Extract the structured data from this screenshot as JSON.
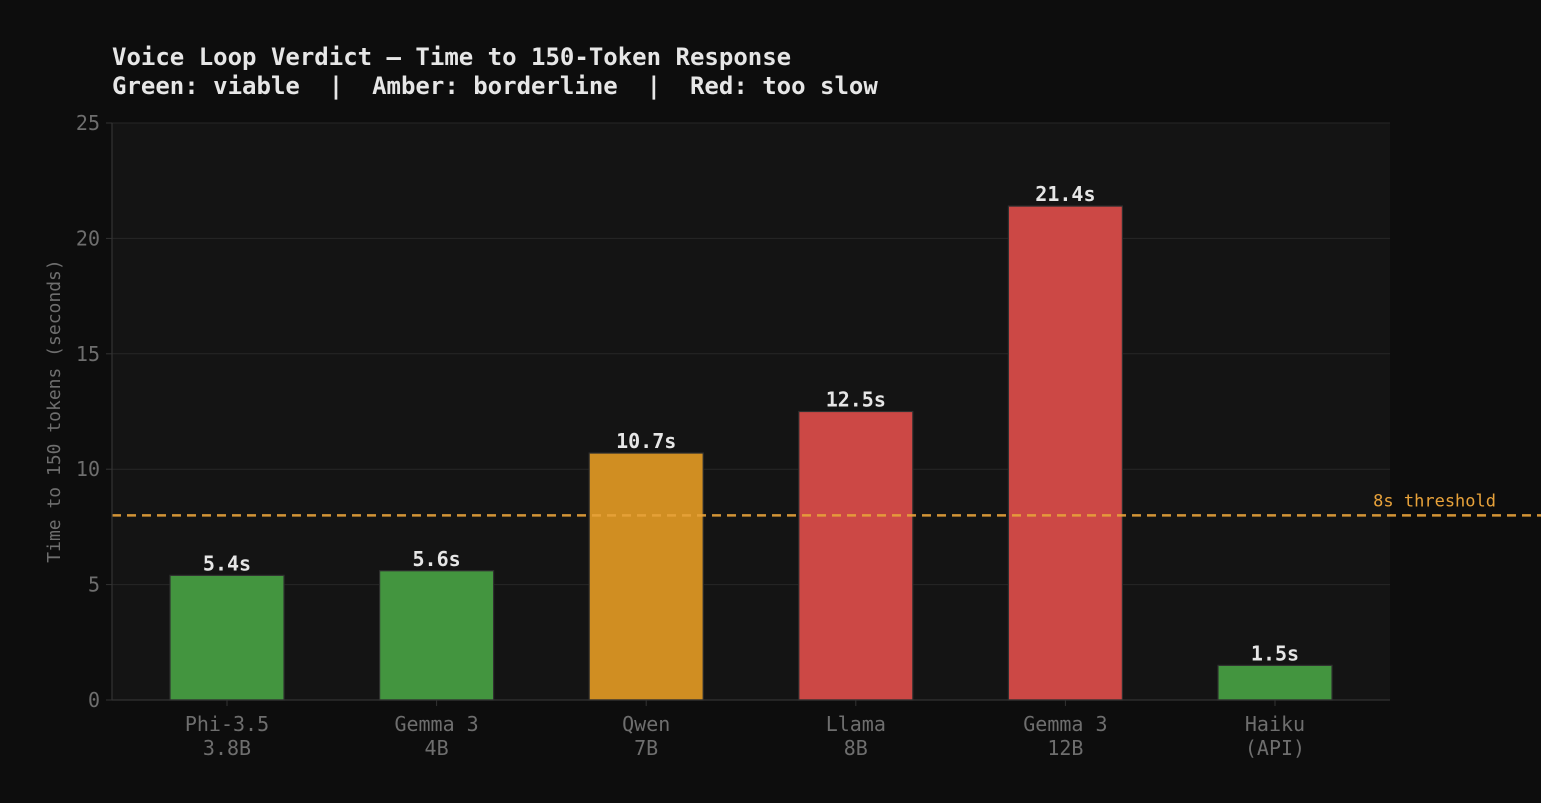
{
  "chart_data": {
    "type": "bar",
    "title": "Voice Loop Verdict — Time to 150-Token Response",
    "subtitle": "Green: viable  |  Amber: borderline  |  Red: too slow",
    "xlabel": "",
    "ylabel": "Time to 150 tokens (seconds)",
    "ylim": [
      0,
      25
    ],
    "yticks": [
      0,
      5,
      10,
      15,
      20,
      25
    ],
    "grid": true,
    "categories": [
      [
        "Phi-3.5",
        "3.8B"
      ],
      [
        "Gemma 3",
        "4B"
      ],
      [
        "Qwen",
        "7B"
      ],
      [
        "Llama",
        "8B"
      ],
      [
        "Gemma 3",
        "12B"
      ],
      [
        "Haiku",
        "(API)"
      ]
    ],
    "values": [
      5.4,
      5.6,
      10.7,
      12.5,
      21.4,
      1.5
    ],
    "value_labels": [
      "5.4s",
      "5.6s",
      "10.7s",
      "12.5s",
      "21.4s",
      "1.5s"
    ],
    "bar_status": [
      "viable",
      "viable",
      "borderline",
      "too slow",
      "too slow",
      "viable"
    ],
    "status_colors": {
      "viable": "#43953f",
      "borderline": "#d08e22",
      "too slow": "#cc4845"
    },
    "threshold": {
      "value": 8,
      "label": "8s threshold",
      "color": "#e8a23a"
    },
    "colors": {
      "background": "#0d0d0d",
      "plot_background": "#141414",
      "grid": "#262626",
      "axis": "#333333",
      "tick_text": "#6e6e6e",
      "title_text": "#e6e6e6",
      "value_text": "#e6e6e6"
    }
  }
}
